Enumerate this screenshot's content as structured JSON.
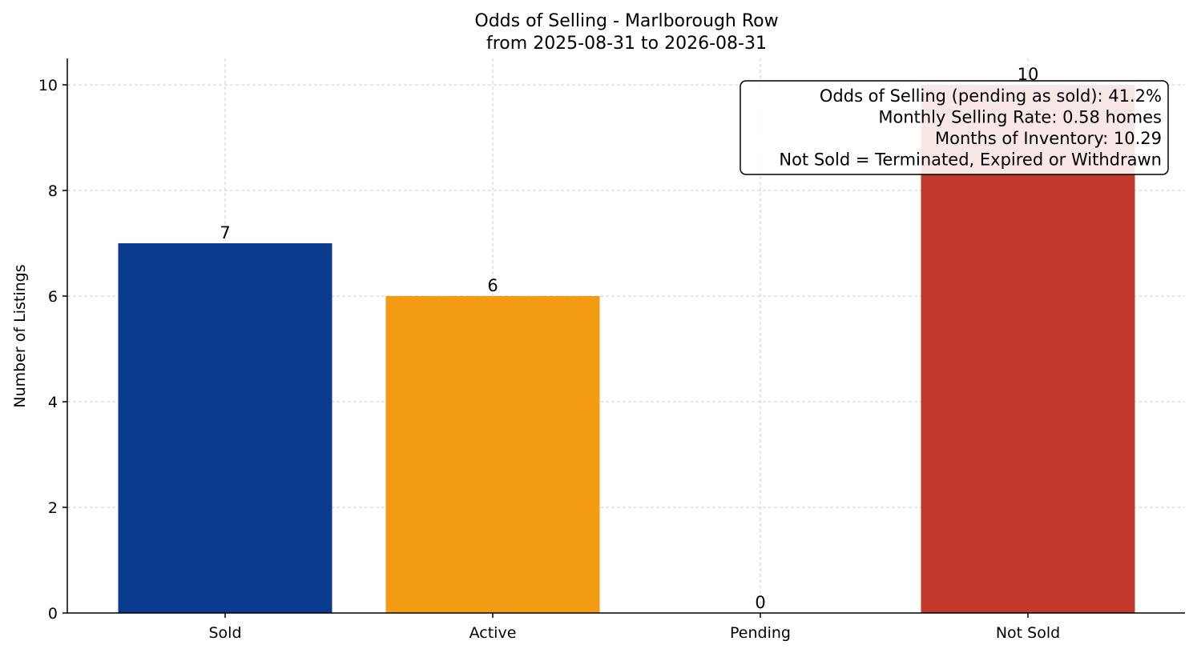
{
  "chart_data": {
    "type": "bar",
    "title": "Odds of Selling - Marlborough Row",
    "subtitle": "from 2025-08-31 to 2026-08-31",
    "xlabel": "",
    "ylabel": "Number of Listings",
    "categories": [
      "Sold",
      "Active",
      "Pending",
      "Not Sold"
    ],
    "values": [
      7,
      6,
      0,
      10
    ],
    "colors": [
      "#0b3b8f",
      "#f39c12",
      "#2e8b57",
      "#c0392b"
    ],
    "ylim": [
      0,
      10.5
    ],
    "yticks": [
      0,
      2,
      4,
      6,
      8,
      10
    ],
    "grid": true,
    "annotation": {
      "placement": "top-right",
      "lines": [
        "Odds of Selling (pending as sold): 41.2%",
        "Monthly Selling Rate: 0.58 homes",
        "Months of Inventory: 10.29",
        "Not Sold = Terminated, Expired or Withdrawn"
      ]
    }
  }
}
